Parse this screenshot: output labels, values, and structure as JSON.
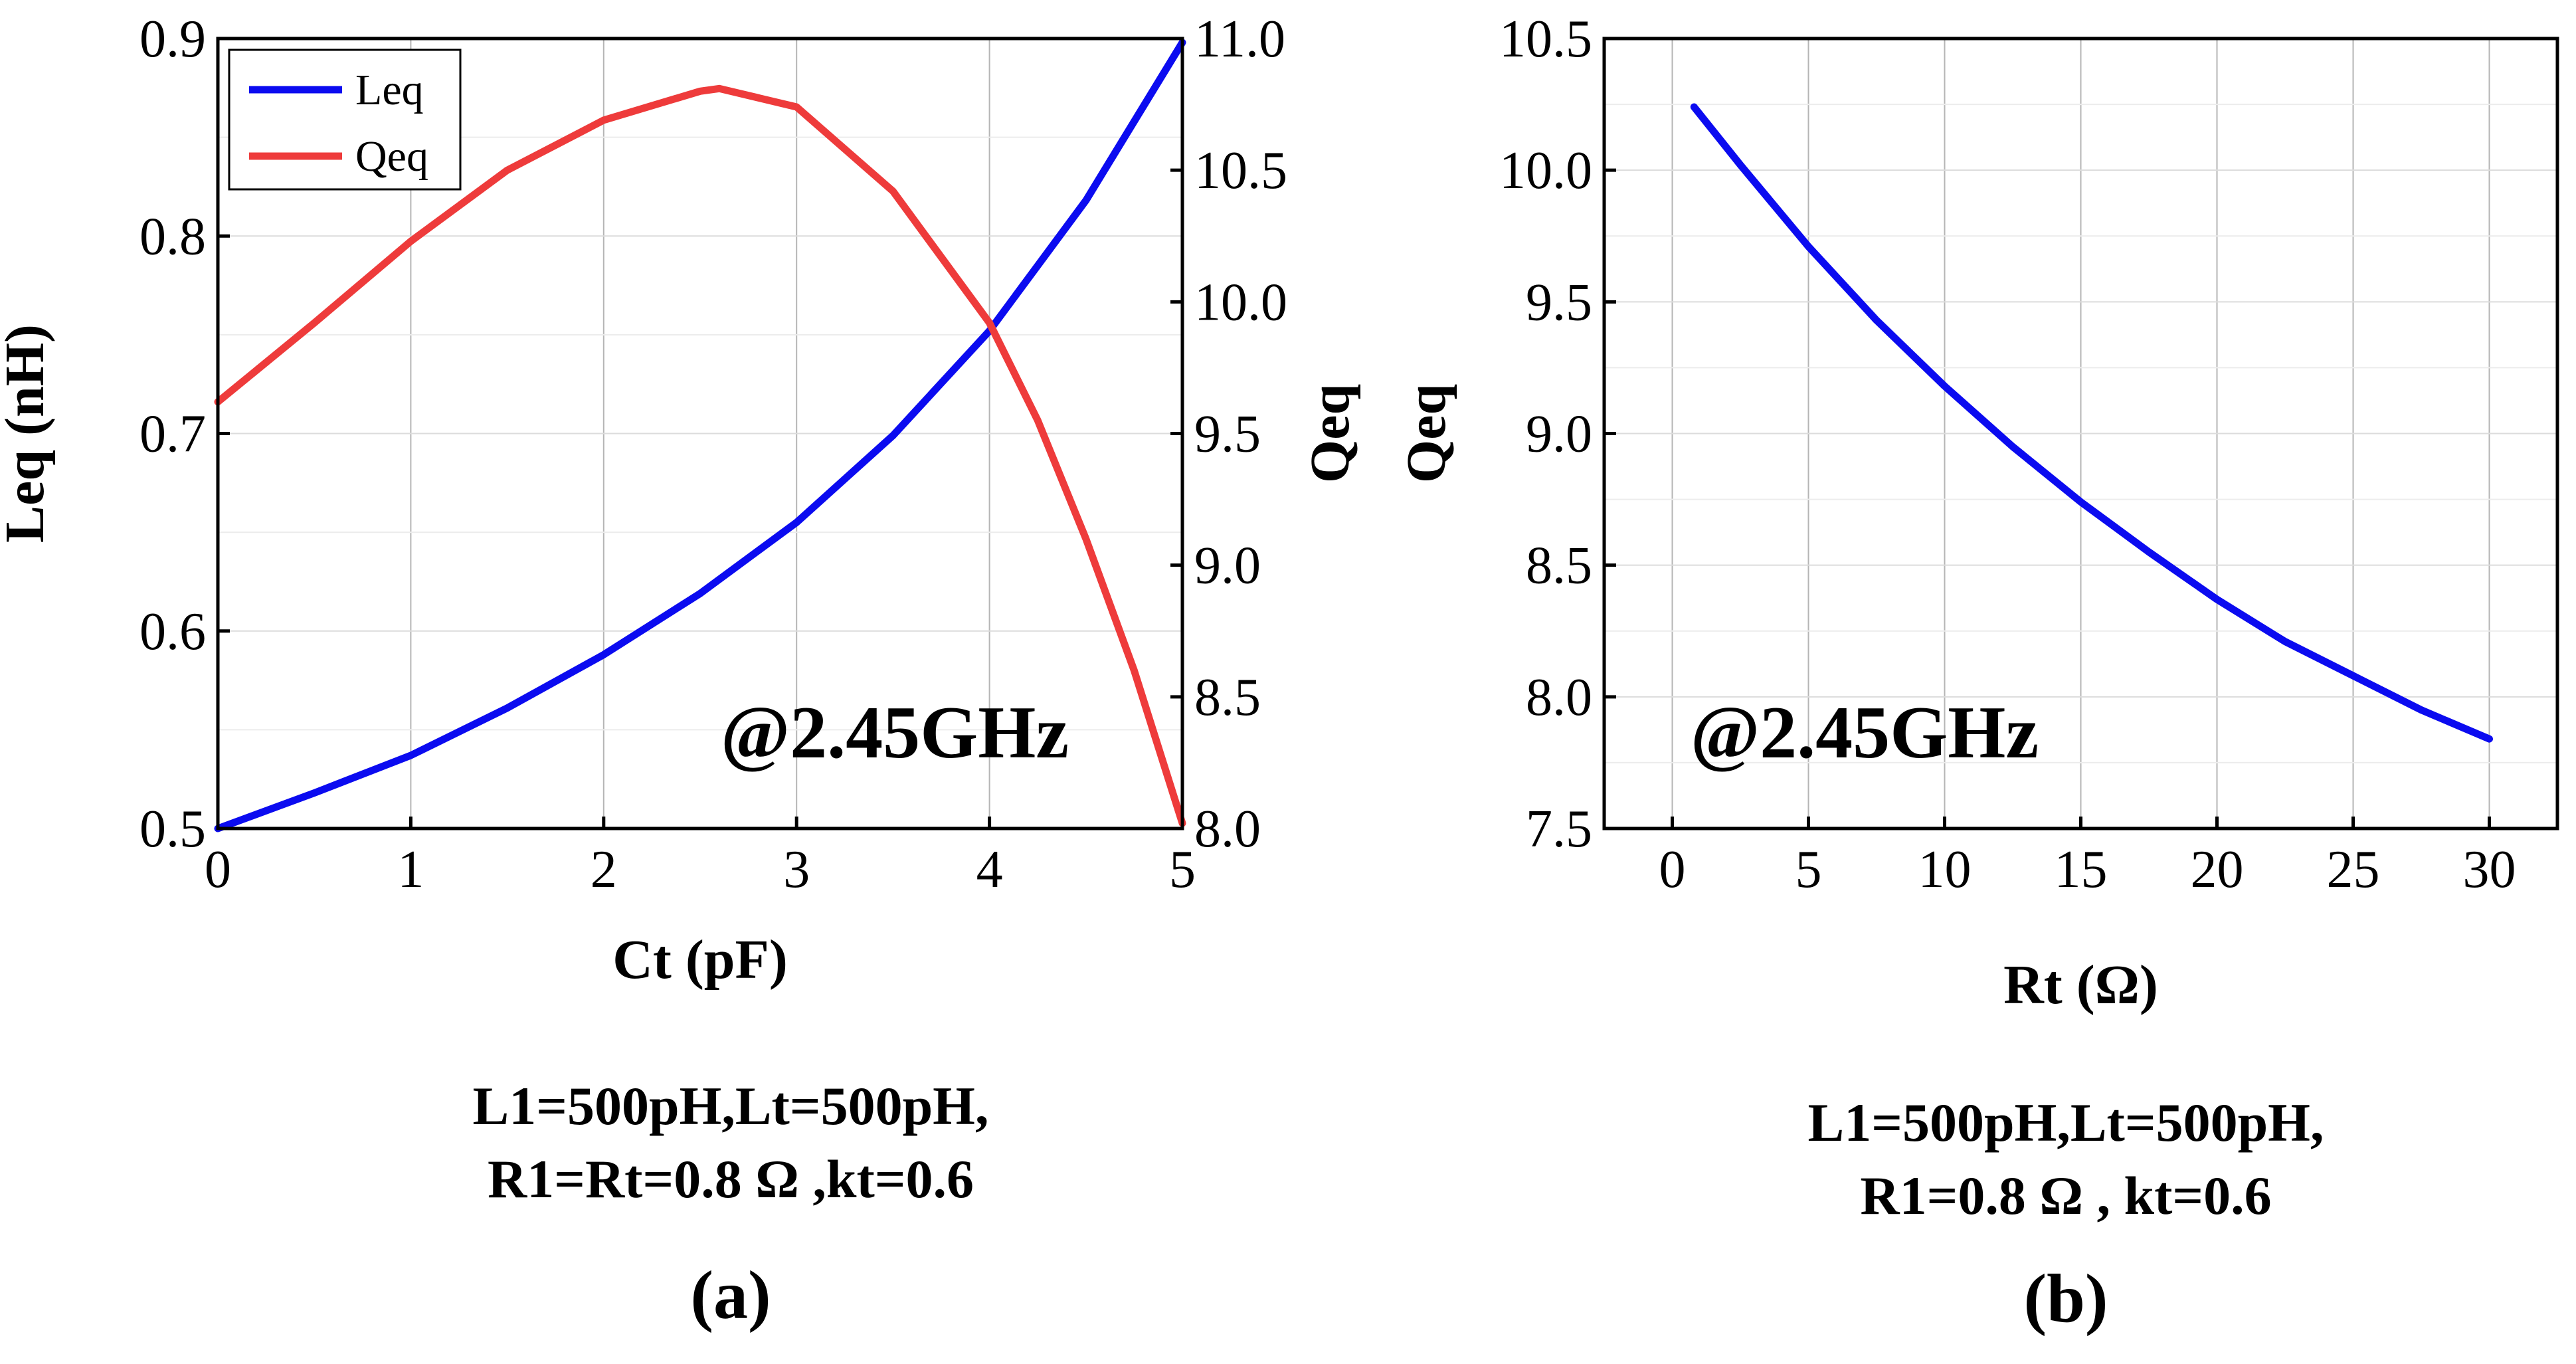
{
  "chart_data": [
    {
      "id": "a",
      "type": "line",
      "xlabel": "Ct (pF)",
      "ylabel": "Leq (nH)",
      "y2label": "Qeq",
      "xlim": [
        0,
        5
      ],
      "ylim": [
        0.5,
        0.9
      ],
      "y2lim": [
        8.0,
        11.0
      ],
      "xticks": [
        "0",
        "1",
        "2",
        "3",
        "4",
        "5"
      ],
      "yticks": [
        "0.5",
        "0.6",
        "0.7",
        "0.8",
        "0.9"
      ],
      "y2ticks": [
        "8.0",
        "8.5",
        "9.0",
        "9.5",
        "10.0",
        "10.5",
        "11.0"
      ],
      "grid": true,
      "legend_position": "top-left",
      "annotation": "@2.45GHz",
      "series": [
        {
          "name": "Leq",
          "axis": "left",
          "color": "#0b0bf0",
          "x": [
            0,
            0.5,
            1,
            1.5,
            2,
            2.5,
            3,
            3.5,
            4,
            4.5,
            5
          ],
          "y": [
            0.5,
            0.518,
            0.537,
            0.561,
            0.588,
            0.619,
            0.655,
            0.699,
            0.752,
            0.818,
            0.898
          ]
        },
        {
          "name": "Qeq",
          "axis": "right",
          "color": "#ee3b3b",
          "x": [
            0,
            0.5,
            1,
            1.5,
            2,
            2.5,
            2.6,
            3,
            3.5,
            4,
            4.25,
            4.5,
            4.75,
            5
          ],
          "y": [
            9.62,
            9.92,
            10.23,
            10.5,
            10.69,
            10.8,
            10.81,
            10.74,
            10.42,
            9.92,
            9.55,
            9.1,
            8.6,
            8.02
          ]
        }
      ]
    },
    {
      "id": "b",
      "type": "line",
      "xlabel": "Rt (Ω)",
      "ylabel": "Qeq",
      "xlim": [
        -2.5,
        32.5
      ],
      "ylim": [
        7.5,
        10.5
      ],
      "xticks": [
        "0",
        "5",
        "10",
        "15",
        "20",
        "25",
        "30"
      ],
      "yticks": [
        "7.5",
        "8.0",
        "8.5",
        "9.0",
        "9.5",
        "10.0",
        "10.5"
      ],
      "grid": true,
      "annotation": "@2.45GHz",
      "series": [
        {
          "name": "Qeq",
          "color": "#0b0bf0",
          "x": [
            0.8,
            2.5,
            5,
            7.5,
            10,
            12.5,
            15,
            17.5,
            20,
            22.5,
            25,
            27.5,
            30
          ],
          "y": [
            10.24,
            10.02,
            9.71,
            9.43,
            9.18,
            8.95,
            8.74,
            8.55,
            8.37,
            8.21,
            8.08,
            7.95,
            7.84
          ]
        }
      ]
    }
  ],
  "captions": {
    "a": {
      "line1": "L1=500pH,Lt=500pH,",
      "line2": "R1=Rt=0.8 Ω ,kt=0.6",
      "label": "(a)"
    },
    "b": {
      "line1": "L1=500pH,Lt=500pH,",
      "line2": "R1=0.8  Ω , kt=0.6",
      "label": "(b)"
    }
  }
}
